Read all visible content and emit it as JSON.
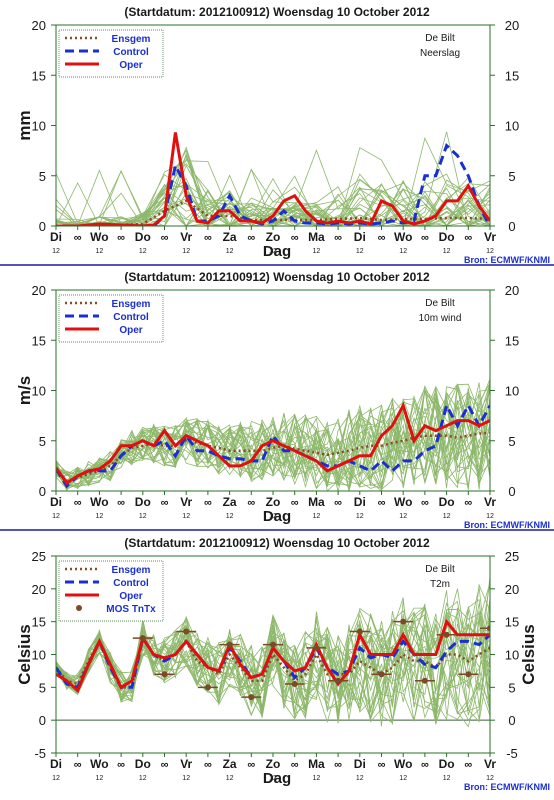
{
  "colors": {
    "ensemble": "#8db86b",
    "ensgem": "#8b4a2b",
    "control": "#1a2fd0",
    "oper": "#e01010",
    "mos": "#7b4a26",
    "axis": "#2a6f2a",
    "axis_text": "#1a1a1a",
    "header": "#1a1a1a",
    "source": "#1a2fd0",
    "divider": "#1a1aa8"
  },
  "x_axis": {
    "xlabel": "Dag",
    "tick_labels": [
      "Di",
      "∞",
      "Wo",
      "∞",
      "Do",
      "∞",
      "Vr",
      "∞",
      "Za",
      "∞",
      "Zo",
      "∞",
      "Ma",
      "∞",
      "Di",
      "∞",
      "Wo",
      "∞",
      "Do",
      "∞",
      "Vr"
    ],
    "hour_label": "12"
  },
  "source": "Bron: ECMWF/KNMI",
  "chart_data": [
    {
      "type": "line",
      "title": "(Startdatum: 2012100912)   Woensdag  10 October  2012",
      "station": "De Bilt",
      "variable": "Neerslag",
      "ylabel_left": "mm",
      "ylabel_right": "",
      "ylim": [
        0,
        20
      ],
      "yticks": [
        0,
        5,
        10,
        15,
        20
      ],
      "xlim": [
        0,
        20
      ],
      "legend": [
        "Ensgem",
        "Control",
        "Oper"
      ],
      "legend_position": "top-left",
      "series": [
        {
          "name": "Ensgem",
          "x": [
            0,
            1,
            2,
            3,
            4,
            5,
            6,
            7,
            8,
            9,
            10,
            11,
            12,
            13,
            14,
            15,
            16,
            17,
            18,
            19,
            20
          ],
          "values": [
            0,
            0,
            0.1,
            0.1,
            0.2,
            1.5,
            2.5,
            1,
            1,
            0.6,
            0.6,
            0.6,
            0.6,
            0.7,
            0.8,
            0.6,
            0.7,
            0.7,
            0.8,
            0.8,
            0.7
          ]
        },
        {
          "name": "Control",
          "x": [
            0,
            1,
            2,
            3,
            4,
            4.5,
            5,
            5.5,
            6,
            6.5,
            7,
            7.5,
            8,
            8.5,
            9,
            9.5,
            10,
            10.5,
            11,
            11.5,
            12,
            12.5,
            13,
            13.5,
            14,
            14.5,
            15,
            15.5,
            16,
            16.5,
            17,
            17.5,
            18,
            18.5,
            19,
            19.5,
            20
          ],
          "values": [
            0,
            0,
            0.1,
            0.1,
            0,
            0,
            1,
            6,
            4,
            0.5,
            0.5,
            1,
            3,
            1,
            0.5,
            0.2,
            0.5,
            1.5,
            0.5,
            0.3,
            0.3,
            0.2,
            0.3,
            0.2,
            0.3,
            0.2,
            0.3,
            0.5,
            0.3,
            0.5,
            5,
            5,
            8,
            7,
            5,
            2,
            0
          ]
        },
        {
          "name": "Oper",
          "x": [
            0,
            1,
            2,
            3,
            4,
            4.5,
            5,
            5.5,
            6,
            6.5,
            7,
            7.5,
            8,
            8.5,
            9,
            9.5,
            10,
            10.5,
            11,
            11.5,
            12,
            12.5,
            13,
            13.5,
            14,
            14.5,
            15,
            15.5,
            16,
            16.5,
            17,
            17.5,
            18,
            18.5,
            19,
            19.5,
            20
          ],
          "values": [
            0,
            0,
            0.2,
            0.1,
            0,
            0.1,
            1,
            9.3,
            3,
            0.5,
            0.3,
            1.5,
            1.5,
            0.5,
            0.5,
            0.3,
            1,
            2.5,
            3,
            1.5,
            0.5,
            0.3,
            0.5,
            0.3,
            0.5,
            0.2,
            2.5,
            2,
            0.5,
            0.2,
            0.5,
            1,
            2.5,
            2.5,
            4,
            2,
            0.5
          ]
        }
      ]
    },
    {
      "type": "line",
      "title": "(Startdatum: 2012100912)   Woensdag  10 October  2012",
      "station": "De Bilt",
      "variable": "10m wind",
      "ylabel_left": "m/s",
      "ylabel_right": "",
      "ylim": [
        0,
        20
      ],
      "yticks": [
        0,
        5,
        10,
        15,
        20
      ],
      "xlim": [
        0,
        20
      ],
      "legend": [
        "Ensgem",
        "Control",
        "Oper"
      ],
      "legend_position": "top-left",
      "series": [
        {
          "name": "Ensgem",
          "x": [
            0,
            0.5,
            1,
            1.5,
            2,
            2.5,
            3,
            3.5,
            4,
            4.5,
            5,
            5.5,
            6,
            6.5,
            7,
            7.5,
            8,
            8.5,
            9,
            9.5,
            10,
            10.5,
            11,
            11.5,
            12,
            12.5,
            13,
            13.5,
            14,
            14.5,
            15,
            15.5,
            16,
            16.5,
            17,
            17.5,
            18,
            18.5,
            19,
            19.5,
            20
          ],
          "values": [
            2.2,
            1,
            1.3,
            1.7,
            2,
            2.5,
            3.5,
            4.3,
            4.5,
            4.7,
            4.5,
            4.5,
            5,
            4.8,
            4.5,
            4.3,
            4,
            4,
            4,
            4,
            4.3,
            4.5,
            4.2,
            4,
            3.8,
            3.6,
            3.8,
            4,
            4.3,
            4.5,
            4.5,
            4.8,
            5,
            5.3,
            5.5,
            5.5,
            5.5,
            5.3,
            5.5,
            5.7,
            5.8
          ]
        },
        {
          "name": "Control",
          "x": [
            0,
            0.5,
            1,
            1.5,
            2,
            2.5,
            3,
            3.5,
            4,
            4.5,
            5,
            5.5,
            6,
            6.5,
            7,
            7.5,
            8,
            8.5,
            9,
            9.5,
            10,
            10.5,
            11,
            11.5,
            12,
            12.5,
            13,
            13.5,
            14,
            14.5,
            15,
            15.5,
            16,
            16.5,
            17,
            17.5,
            18,
            18.5,
            19,
            19.5,
            20
          ],
          "values": [
            2.2,
            0.5,
            1.5,
            2,
            2,
            2,
            3.5,
            4.5,
            5,
            4.5,
            5,
            3.5,
            5.5,
            4,
            4,
            3.5,
            3.2,
            3.2,
            3,
            3,
            5.5,
            4,
            4,
            3.5,
            3,
            2.5,
            2.5,
            3,
            2.5,
            2,
            3,
            2,
            3,
            3,
            4,
            4.5,
            8.5,
            6.5,
            8.5,
            6.5,
            8.5
          ]
        },
        {
          "name": "Oper",
          "x": [
            0,
            0.5,
            1,
            1.5,
            2,
            2.5,
            3,
            3.5,
            4,
            4.5,
            5,
            5.5,
            6,
            6.5,
            7,
            7.5,
            8,
            8.5,
            9,
            9.5,
            10,
            10.5,
            11,
            11.5,
            12,
            12.5,
            13,
            13.5,
            14,
            14.5,
            15,
            15.5,
            16,
            16.5,
            17,
            17.5,
            18,
            18.5,
            19,
            19.5,
            20
          ],
          "values": [
            2.3,
            0.8,
            1.5,
            2,
            2.2,
            3,
            4.5,
            4.5,
            5,
            4.5,
            6,
            4.5,
            5.5,
            5,
            4.5,
            3.5,
            2.5,
            2.5,
            3,
            4.5,
            5,
            4.5,
            4,
            3.5,
            3,
            2,
            2.5,
            3,
            3.5,
            3.5,
            5.5,
            6.5,
            8.5,
            5,
            6.5,
            6,
            6.5,
            7,
            7,
            6.5,
            7
          ]
        }
      ]
    },
    {
      "type": "line",
      "title": "(Startdatum: 2012100912)   Woensdag  10 October  2012",
      "station": "De Bilt",
      "variable": "T2m",
      "ylabel_left": "Celsius",
      "ylabel_right": "Celsius",
      "ylim": [
        -5,
        25
      ],
      "yticks": [
        -5,
        0,
        5,
        10,
        15,
        20,
        25
      ],
      "xlim": [
        0,
        20
      ],
      "legend": [
        "Ensgem",
        "Control",
        "Oper",
        "MOS TnTx"
      ],
      "legend_position": "top-left",
      "series": [
        {
          "name": "Ensgem",
          "x": [
            0,
            0.5,
            1,
            1.5,
            2,
            2.5,
            3,
            3.5,
            4,
            4.5,
            5,
            5.5,
            6,
            6.5,
            7,
            7.5,
            8,
            8.5,
            9,
            9.5,
            10,
            10.5,
            11,
            11.5,
            12,
            12.5,
            13,
            13.5,
            14,
            14.5,
            15,
            15.5,
            16,
            16.5,
            17,
            17.5,
            18,
            18.5,
            19,
            19.5,
            20
          ],
          "values": [
            8,
            6,
            5.5,
            9,
            12,
            8,
            5,
            5,
            12.5,
            10,
            9,
            10,
            12,
            9,
            8,
            7,
            10,
            8,
            6,
            6,
            10,
            8,
            6,
            7,
            10,
            7,
            7,
            7,
            9,
            8,
            7,
            8,
            10,
            9,
            9,
            8,
            10,
            10,
            9,
            10,
            11
          ]
        },
        {
          "name": "Control",
          "x": [
            0,
            0.5,
            1,
            1.5,
            2,
            2.5,
            3,
            3.5,
            4,
            4.5,
            5,
            5.5,
            6,
            6.5,
            7,
            7.5,
            8,
            8.5,
            9,
            9.5,
            10,
            10.5,
            11,
            11.5,
            12,
            12.5,
            13,
            13.5,
            14,
            14.5,
            15,
            15.5,
            16,
            16.5,
            17,
            17.5,
            18,
            18.5,
            19,
            19.5,
            20
          ],
          "values": [
            8,
            5.5,
            5,
            8.5,
            12,
            8,
            5,
            5,
            12.5,
            10,
            9,
            10,
            12,
            10,
            8,
            7.5,
            11,
            9,
            6.5,
            7,
            11,
            9,
            6.5,
            8,
            11,
            8,
            7,
            7.5,
            11,
            9.5,
            10,
            9.5,
            12,
            10,
            8.5,
            8,
            10.5,
            12,
            12,
            11.5,
            13
          ]
        },
        {
          "name": "Oper",
          "x": [
            0,
            0.5,
            1,
            1.5,
            2,
            2.5,
            3,
            3.5,
            4,
            4.5,
            5,
            5.5,
            6,
            6.5,
            7,
            7.5,
            8,
            8.5,
            9,
            9.5,
            10,
            10.5,
            11,
            11.5,
            12,
            12.5,
            13,
            13.5,
            14,
            14.5,
            15,
            15.5,
            16,
            16.5,
            17,
            17.5,
            18,
            18.5,
            19,
            19.5,
            20
          ],
          "values": [
            7,
            6,
            4.5,
            8.5,
            12,
            8.5,
            5,
            6,
            12.5,
            10,
            9.5,
            10,
            12,
            10,
            8,
            7.5,
            11.5,
            8.5,
            6.5,
            7,
            11,
            9,
            7.5,
            8,
            11.5,
            8,
            5.5,
            7.5,
            13,
            10,
            10,
            10,
            13,
            10,
            10,
            10,
            15,
            13,
            13,
            13,
            13
          ]
        },
        {
          "name": "MOS TnTx",
          "x": [
            4,
            5,
            6,
            7,
            8,
            9,
            10,
            11,
            12,
            13,
            14,
            15,
            16,
            17,
            18,
            19,
            20
          ],
          "values": [
            12.5,
            7,
            13.5,
            5,
            11.5,
            3.5,
            11.5,
            5.5,
            11,
            6,
            13.5,
            7,
            15,
            6,
            13,
            7,
            14
          ]
        }
      ]
    }
  ]
}
